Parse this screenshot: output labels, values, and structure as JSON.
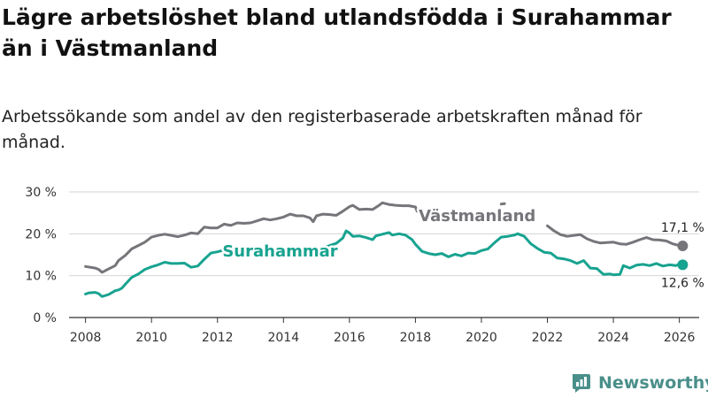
{
  "header": {
    "title": "Lägre arbetslöshet bland utlandsfödda i Surahammar än i Västmanland",
    "subtitle": "Arbetssökande som andel av den registerbaserade arbetskraften månad för månad."
  },
  "brand": {
    "name": "Newsworthy",
    "color": "#4a8f8a"
  },
  "chart_data": {
    "type": "line",
    "title": "Lägre arbetslöshet bland utlandsfödda i Surahammar än i Västmanland",
    "subtitle": "Arbetssökande som andel av den registerbaserade arbetskraften månad för månad.",
    "xlabel": "",
    "ylabel": "",
    "xlim": [
      2007.5,
      2026.6
    ],
    "ylim": [
      0,
      30
    ],
    "grid": true,
    "y_ticks": [
      {
        "value": 0,
        "label": "0 %"
      },
      {
        "value": 10,
        "label": "10 %"
      },
      {
        "value": 20,
        "label": "20 %"
      },
      {
        "value": 30,
        "label": "30 %"
      }
    ],
    "x_ticks": [
      {
        "value": 2008,
        "label": "2008"
      },
      {
        "value": 2010,
        "label": "2010"
      },
      {
        "value": 2012,
        "label": "2012"
      },
      {
        "value": 2014,
        "label": "2014"
      },
      {
        "value": 2016,
        "label": "2016"
      },
      {
        "value": 2018,
        "label": "2018"
      },
      {
        "value": 2020,
        "label": "2020"
      },
      {
        "value": 2022,
        "label": "2022"
      },
      {
        "value": 2024,
        "label": "2024"
      },
      {
        "value": 2026,
        "label": "2026"
      }
    ],
    "series": [
      {
        "name": "Västmanland",
        "color": "#75757a",
        "end_label": "17,1 %",
        "end_value": 17.1,
        "segments": [
          [
            [
              2008.0,
              12.2
            ],
            [
              2008.3,
              11.8
            ],
            [
              2008.4,
              11.5
            ],
            [
              2008.5,
              10.8
            ],
            [
              2008.7,
              11.6
            ],
            [
              2008.9,
              12.4
            ],
            [
              2009.0,
              13.6
            ],
            [
              2009.2,
              14.8
            ],
            [
              2009.4,
              16.4
            ],
            [
              2009.6,
              17.2
            ],
            [
              2009.8,
              18.0
            ],
            [
              2010.0,
              19.2
            ],
            [
              2010.2,
              19.6
            ],
            [
              2010.4,
              19.9
            ],
            [
              2010.6,
              19.6
            ],
            [
              2010.8,
              19.3
            ],
            [
              2011.0,
              19.7
            ],
            [
              2011.2,
              20.2
            ],
            [
              2011.4,
              20.0
            ],
            [
              2011.6,
              21.6
            ],
            [
              2011.8,
              21.4
            ],
            [
              2012.0,
              21.4
            ],
            [
              2012.2,
              22.3
            ],
            [
              2012.4,
              22.0
            ],
            [
              2012.6,
              22.6
            ],
            [
              2012.8,
              22.5
            ],
            [
              2013.0,
              22.6
            ],
            [
              2013.2,
              23.1
            ],
            [
              2013.4,
              23.6
            ],
            [
              2013.6,
              23.3
            ],
            [
              2013.8,
              23.6
            ],
            [
              2014.0,
              24.0
            ],
            [
              2014.2,
              24.7
            ],
            [
              2014.4,
              24.3
            ],
            [
              2014.6,
              24.3
            ],
            [
              2014.8,
              23.8
            ],
            [
              2014.9,
              22.9
            ],
            [
              2015.0,
              24.3
            ],
            [
              2015.2,
              24.7
            ],
            [
              2015.4,
              24.6
            ],
            [
              2015.6,
              24.4
            ],
            [
              2015.8,
              25.4
            ],
            [
              2016.0,
              26.5
            ],
            [
              2016.1,
              26.8
            ],
            [
              2016.3,
              25.8
            ],
            [
              2016.5,
              25.9
            ],
            [
              2016.7,
              25.8
            ],
            [
              2016.9,
              26.8
            ],
            [
              2017.0,
              27.4
            ],
            [
              2017.2,
              27.0
            ],
            [
              2017.4,
              26.8
            ],
            [
              2017.6,
              26.7
            ],
            [
              2017.8,
              26.7
            ],
            [
              2018.0,
              26.4
            ],
            [
              2018.05,
              25.4
            ]
          ],
          [
            [
              2020.6,
              27.1
            ],
            [
              2020.7,
              27.2
            ]
          ],
          [
            [
              2022.0,
              21.9
            ],
            [
              2022.2,
              20.7
            ],
            [
              2022.4,
              19.8
            ],
            [
              2022.6,
              19.4
            ],
            [
              2022.8,
              19.6
            ],
            [
              2023.0,
              19.8
            ],
            [
              2023.2,
              18.8
            ],
            [
              2023.4,
              18.2
            ],
            [
              2023.6,
              17.8
            ],
            [
              2023.8,
              17.9
            ],
            [
              2024.0,
              18.0
            ],
            [
              2024.2,
              17.6
            ],
            [
              2024.4,
              17.5
            ],
            [
              2024.6,
              18.0
            ],
            [
              2024.8,
              18.6
            ],
            [
              2025.0,
              19.1
            ],
            [
              2025.2,
              18.6
            ],
            [
              2025.4,
              18.5
            ],
            [
              2025.6,
              18.3
            ],
            [
              2025.8,
              17.6
            ],
            [
              2026.0,
              17.2
            ],
            [
              2026.1,
              17.1
            ]
          ]
        ]
      },
      {
        "name": "Surahammar",
        "color": "#18a390",
        "end_label": "12,6 %",
        "end_value": 12.6,
        "segments": [
          [
            [
              2008.0,
              5.6
            ],
            [
              2008.1,
              5.9
            ],
            [
              2008.3,
              6.0
            ],
            [
              2008.4,
              5.7
            ],
            [
              2008.5,
              5.0
            ],
            [
              2008.7,
              5.5
            ],
            [
              2008.9,
              6.4
            ],
            [
              2009.0,
              6.6
            ],
            [
              2009.1,
              7.0
            ],
            [
              2009.2,
              7.9
            ],
            [
              2009.4,
              9.6
            ],
            [
              2009.6,
              10.4
            ],
            [
              2009.8,
              11.5
            ],
            [
              2010.0,
              12.1
            ],
            [
              2010.2,
              12.6
            ],
            [
              2010.4,
              13.2
            ],
            [
              2010.6,
              12.9
            ],
            [
              2010.8,
              12.9
            ],
            [
              2011.0,
              13.0
            ],
            [
              2011.2,
              12.0
            ],
            [
              2011.4,
              12.3
            ],
            [
              2011.6,
              13.9
            ],
            [
              2011.8,
              15.4
            ],
            [
              2012.0,
              15.7
            ],
            [
              2012.1,
              15.9
            ],
            [
              2012.25,
              16.1
            ]
          ],
          [
            [
              2015.0,
              15.6
            ],
            [
              2015.2,
              16.6
            ],
            [
              2015.4,
              17.2
            ],
            [
              2015.6,
              17.7
            ],
            [
              2015.8,
              19.0
            ],
            [
              2015.9,
              20.7
            ],
            [
              2016.0,
              20.2
            ],
            [
              2016.1,
              19.4
            ],
            [
              2016.3,
              19.5
            ],
            [
              2016.5,
              19.1
            ],
            [
              2016.7,
              18.6
            ],
            [
              2016.8,
              19.5
            ],
            [
              2017.0,
              19.9
            ],
            [
              2017.2,
              20.3
            ],
            [
              2017.3,
              19.7
            ],
            [
              2017.5,
              20.0
            ],
            [
              2017.7,
              19.7
            ],
            [
              2017.9,
              18.6
            ],
            [
              2018.0,
              17.5
            ],
            [
              2018.2,
              15.8
            ],
            [
              2018.4,
              15.3
            ],
            [
              2018.6,
              15.0
            ],
            [
              2018.8,
              15.3
            ],
            [
              2019.0,
              14.5
            ],
            [
              2019.2,
              15.1
            ],
            [
              2019.4,
              14.7
            ],
            [
              2019.6,
              15.4
            ],
            [
              2019.8,
              15.3
            ],
            [
              2020.0,
              16.0
            ],
            [
              2020.2,
              16.4
            ],
            [
              2020.4,
              17.9
            ],
            [
              2020.6,
              19.2
            ],
            [
              2020.8,
              19.4
            ],
            [
              2021.0,
              19.7
            ],
            [
              2021.1,
              20.0
            ],
            [
              2021.3,
              19.4
            ],
            [
              2021.5,
              17.6
            ],
            [
              2021.7,
              16.5
            ],
            [
              2021.9,
              15.6
            ],
            [
              2022.1,
              15.4
            ],
            [
              2022.3,
              14.2
            ],
            [
              2022.5,
              14.0
            ],
            [
              2022.7,
              13.6
            ],
            [
              2022.9,
              12.9
            ],
            [
              2023.1,
              13.6
            ],
            [
              2023.3,
              11.8
            ],
            [
              2023.5,
              11.7
            ],
            [
              2023.7,
              10.3
            ],
            [
              2023.9,
              10.4
            ],
            [
              2024.0,
              10.2
            ],
            [
              2024.2,
              10.3
            ],
            [
              2024.3,
              12.4
            ],
            [
              2024.5,
              11.8
            ],
            [
              2024.7,
              12.5
            ],
            [
              2024.9,
              12.7
            ],
            [
              2025.1,
              12.4
            ],
            [
              2025.3,
              12.9
            ],
            [
              2025.5,
              12.3
            ],
            [
              2025.7,
              12.6
            ],
            [
              2025.9,
              12.4
            ],
            [
              2026.0,
              12.8
            ],
            [
              2026.1,
              12.6
            ]
          ]
        ]
      }
    ],
    "annotations": [
      {
        "text": "Västmanland",
        "series": "Västmanland",
        "x": 2018.1,
        "y": 23.0,
        "anchor": "start"
      },
      {
        "text": "Surahammar",
        "series": "Surahammar",
        "x": 2012.15,
        "y": 14.6,
        "anchor": "start"
      }
    ]
  }
}
